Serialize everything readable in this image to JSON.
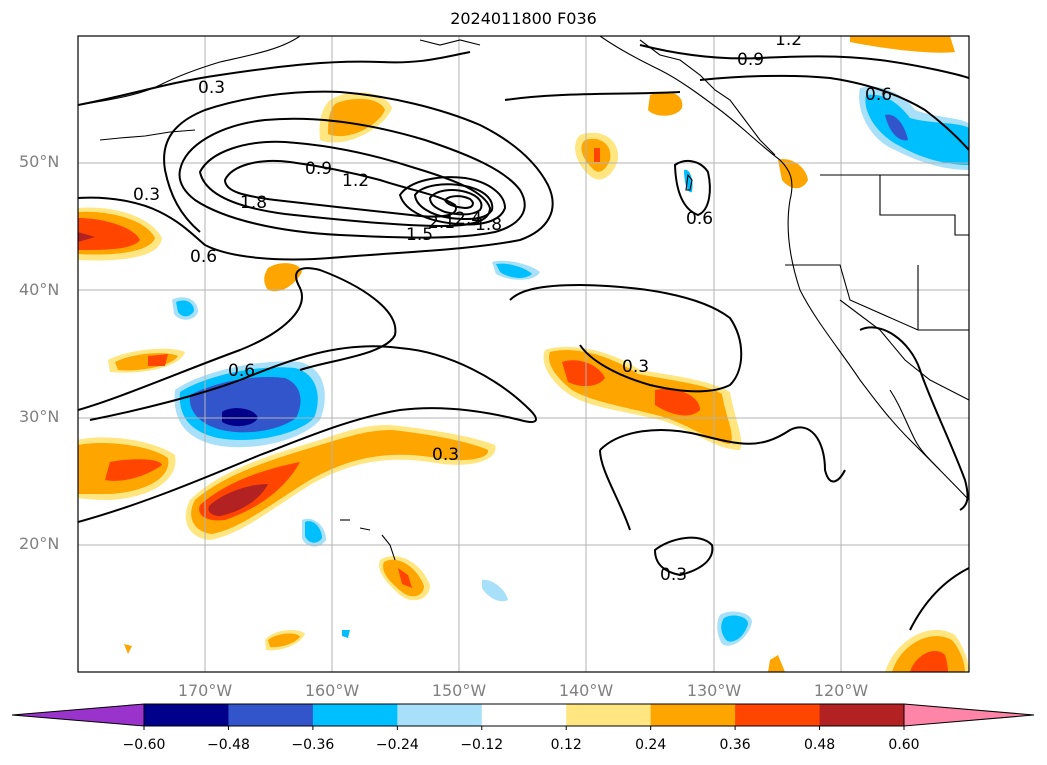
{
  "title": "2024011800 F036",
  "lat_labels": [
    "50°N",
    "40°N",
    "30°N",
    "20°N"
  ],
  "lon_labels": [
    "170°W",
    "160°W",
    "150°W",
    "140°W",
    "130°W",
    "120°W"
  ],
  "colorbar": {
    "ticks": [
      "−0.60",
      "−0.48",
      "−0.36",
      "−0.24",
      "−0.12",
      "0.12",
      "0.24",
      "0.36",
      "0.48",
      "0.60"
    ],
    "colors": [
      "#9933cc",
      "#00008b",
      "#3355cc",
      "#00bfff",
      "#a8e0fa",
      "#ffffff",
      "#ffe680",
      "#ffa500",
      "#ff4500",
      "#b22222",
      "#ff85a8"
    ]
  },
  "contour_labels": [
    "1.2",
    "0.9",
    "0.3",
    "0.9",
    "1.2",
    "1.8",
    "0.3",
    "0.6",
    "2.1",
    "2.4",
    "1.8",
    "1.5",
    "0.6",
    "0.6",
    "0.6",
    "0.3",
    "0.3",
    "0.3"
  ],
  "chart_data": {
    "type": "map",
    "region": "North Pacific",
    "lon_range": [
      -180,
      -110
    ],
    "lat_range": [
      10,
      60
    ],
    "gridlines": true,
    "fill_levels": [
      -0.6,
      -0.48,
      -0.36,
      -0.24,
      -0.12,
      0.12,
      0.24,
      0.36,
      0.48,
      0.6
    ],
    "contour_levels": [
      0.3,
      0.6,
      0.9,
      1.2,
      1.5,
      1.8,
      2.1,
      2.4
    ]
  }
}
